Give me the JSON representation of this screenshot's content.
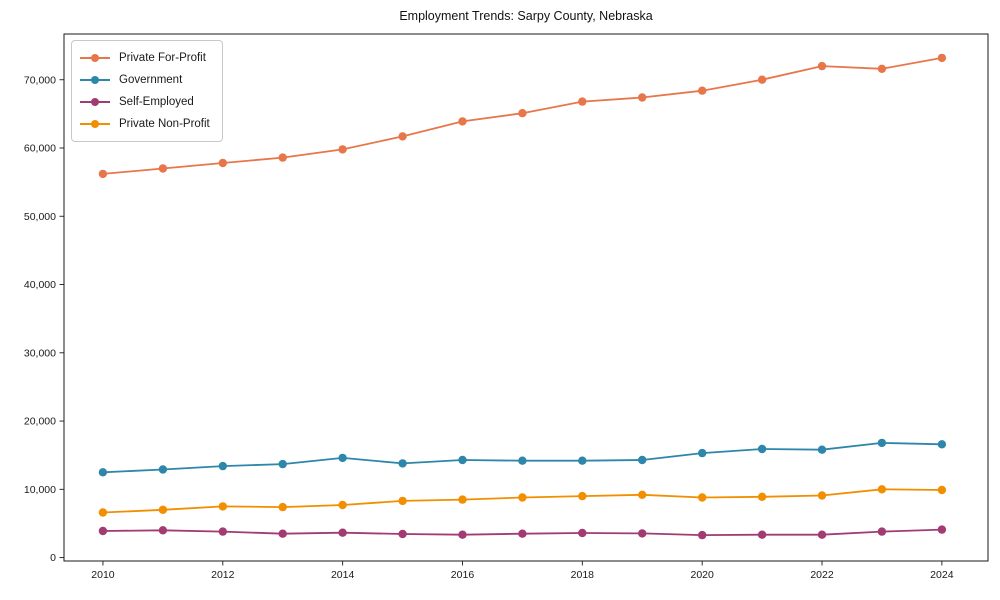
{
  "figure": {
    "background": "#ffffff",
    "frame_color": "#1a1a1a",
    "text_color": "#1a1a1a"
  },
  "chart_data": {
    "type": "line",
    "title": "Employment Trends: Sarpy County, Nebraska",
    "xlabel": "",
    "ylabel": "",
    "grid": false,
    "legend_position": "upper-left",
    "x": [
      2010,
      2011,
      2012,
      2013,
      2014,
      2015,
      2016,
      2017,
      2018,
      2019,
      2020,
      2021,
      2022,
      2023,
      2024
    ],
    "series": [
      {
        "name": "Private For-Profit",
        "color": "#E8764B",
        "values": [
          56200,
          57000,
          57800,
          58600,
          59800,
          61700,
          63900,
          65100,
          66800,
          67400,
          68400,
          70000,
          72000,
          71600,
          73200
        ]
      },
      {
        "name": "Government",
        "color": "#2E86AB",
        "values": [
          12500,
          12900,
          13400,
          13700,
          14600,
          13800,
          14300,
          14200,
          14200,
          14300,
          15300,
          15900,
          15800,
          16800,
          16600
        ]
      },
      {
        "name": "Self-Employed",
        "color": "#A23B72",
        "values": [
          3900,
          4000,
          3800,
          3500,
          3650,
          3450,
          3350,
          3500,
          3600,
          3550,
          3300,
          3350,
          3350,
          3800,
          4100
        ]
      },
      {
        "name": "Private Non-Profit",
        "color": "#F18F01",
        "values": [
          6600,
          7000,
          7500,
          7400,
          7700,
          8300,
          8500,
          8800,
          9000,
          9200,
          8800,
          8900,
          9100,
          10000,
          9900
        ]
      }
    ],
    "xlim": [
      2009.35,
      2024.77
    ],
    "ylim": [
      -500,
      76700
    ],
    "xticks": {
      "values": [
        2010,
        2012,
        2014,
        2016,
        2018,
        2020,
        2022,
        2024
      ],
      "labels": [
        "2010",
        "2012",
        "2014",
        "2016",
        "2018",
        "2020",
        "2022",
        "2024"
      ]
    },
    "yticks": {
      "values": [
        0,
        10000,
        20000,
        30000,
        40000,
        50000,
        60000,
        70000
      ],
      "labels": [
        "0",
        "10,000",
        "20,000",
        "30,000",
        "40,000",
        "50,000",
        "60,000",
        "70,000"
      ]
    }
  }
}
